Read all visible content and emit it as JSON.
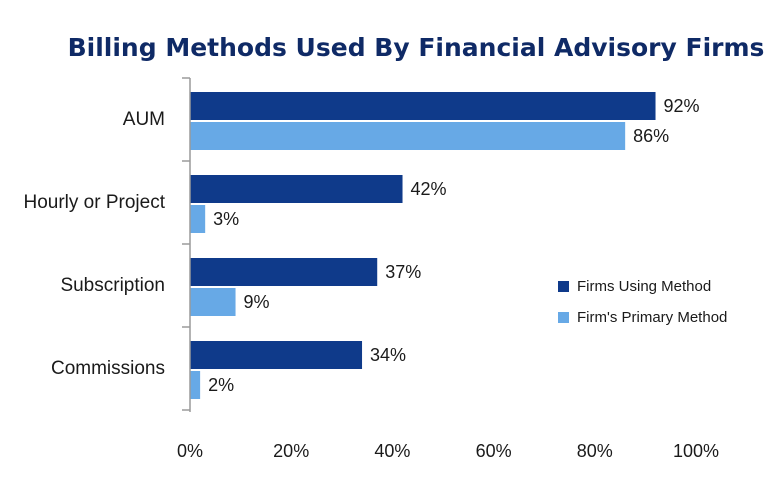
{
  "chart_data": {
    "type": "bar",
    "orientation": "horizontal",
    "title": "Billing Methods Used By Financial Advisory Firms",
    "categories": [
      "AUM",
      "Hourly or Project",
      "Subscription",
      "Commissions"
    ],
    "series": [
      {
        "name": "Firms Using Method",
        "values": [
          92,
          42,
          37,
          34
        ],
        "color": "#0f3a8a"
      },
      {
        "name": "Firm's Primary Method",
        "values": [
          86,
          3,
          9,
          2
        ],
        "color": "#67a9e6"
      }
    ],
    "value_suffix": "%",
    "xlim": [
      0,
      100
    ],
    "xticks": [
      0,
      20,
      40,
      60,
      80,
      100
    ],
    "xtick_labels": [
      "0%",
      "20%",
      "40%",
      "60%",
      "80%",
      "100%"
    ],
    "grid": false,
    "legend_position": "right",
    "title_color": "#0f2a66"
  }
}
